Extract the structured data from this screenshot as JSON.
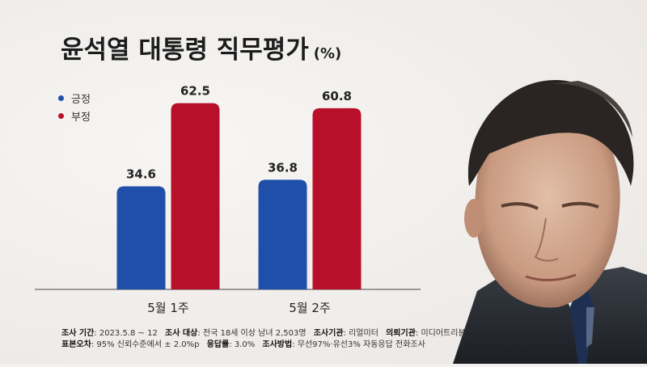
{
  "title": "윤석열 대통령 직무평가",
  "title_unit": "(%)",
  "colors": {
    "positive": "#1f4fa8",
    "negative": "#b8102a",
    "baseline": "#444444"
  },
  "legend": [
    {
      "label": "긍정",
      "color": "#1f4fa8"
    },
    {
      "label": "부정",
      "color": "#b8102a"
    }
  ],
  "chart_data": {
    "type": "bar",
    "categories": [
      "5월 1주",
      "5월 2주"
    ],
    "series": [
      {
        "name": "긍정",
        "values": [
          34.6,
          36.8
        ]
      },
      {
        "name": "부정",
        "values": [
          62.5,
          60.8
        ]
      }
    ],
    "ylim": [
      0,
      70
    ],
    "grid": false,
    "legend_position": "top-left"
  },
  "notes": {
    "line1": [
      {
        "label": "조사 기간",
        "value": ": 2023.5.8 ~ 12"
      },
      {
        "label": "조사 대상",
        "value": ": 전국 18세 이상 남녀 2,503명"
      },
      {
        "label": "조사기관",
        "value": ": 리얼미터"
      },
      {
        "label": "의뢰기관",
        "value": ": 미디어트리뷴"
      }
    ],
    "line2": [
      {
        "label": "표본오차",
        "value": ": 95% 신뢰수준에서 ± 2.0%p"
      },
      {
        "label": "응답률",
        "value": ": 3.0%"
      },
      {
        "label": "조사방법",
        "value": ": 무선97%·유선3% 자동응답 전화조사"
      }
    ]
  }
}
